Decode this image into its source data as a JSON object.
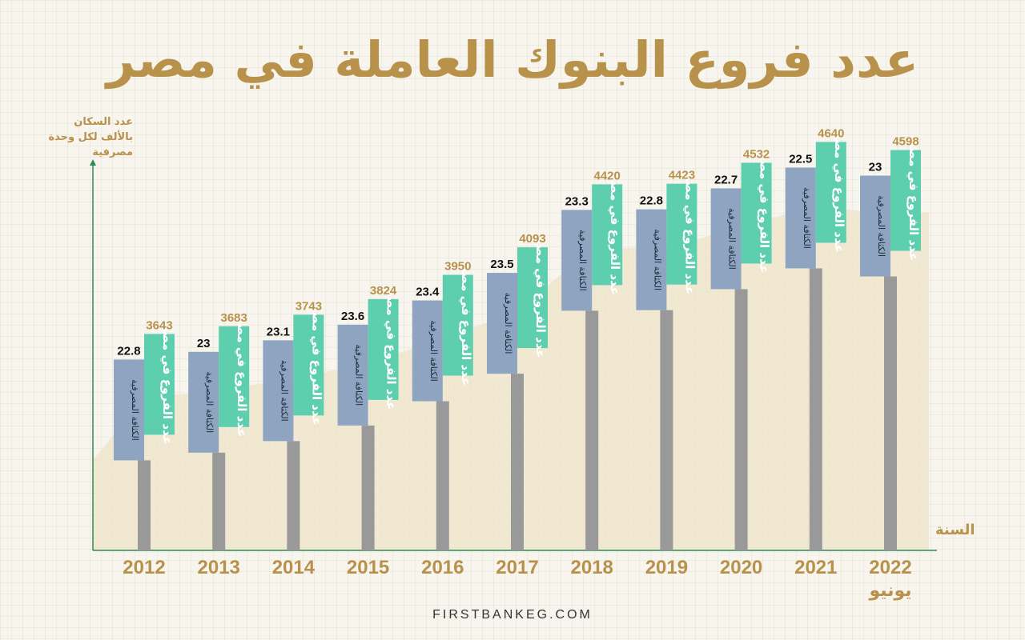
{
  "title": "عدد فروع البنوك العاملة في مصر",
  "footer": "FIRSTBANKEG.COM",
  "chart_data": {
    "type": "bar",
    "title": "عدد فروع البنوك العاملة في مصر",
    "ylabel": "عدد السكان بالألف لكل وحدة مصرفية",
    "xlabel": "السنة",
    "categories": [
      "2012",
      "2013",
      "2014",
      "2015",
      "2016",
      "2017",
      "2018",
      "2019",
      "2020",
      "2021",
      "2022"
    ],
    "category_sublabels": [
      "",
      "",
      "",
      "",
      "",
      "",
      "",
      "",
      "",
      "",
      "يونيو"
    ],
    "series": [
      {
        "name": "الكثافة المصرفية",
        "values": [
          22.8,
          23,
          23.1,
          23.6,
          23.4,
          23.5,
          23.3,
          22.8,
          22.7,
          22.5,
          23
        ],
        "color": "#8ea4c1"
      },
      {
        "name": "عدد الفروع في مصر",
        "values": [
          3643,
          3683,
          3743,
          3824,
          3950,
          4093,
          4420,
          4423,
          4532,
          4640,
          4598
        ],
        "color": "#5ecfae"
      }
    ],
    "branches_ylim": [
      3300,
      4700
    ],
    "colors": {
      "title": "#b8914a",
      "stem": "#999999",
      "area": "#efe3c8",
      "axis": "#2e8b57",
      "density_label": "#111111"
    }
  }
}
